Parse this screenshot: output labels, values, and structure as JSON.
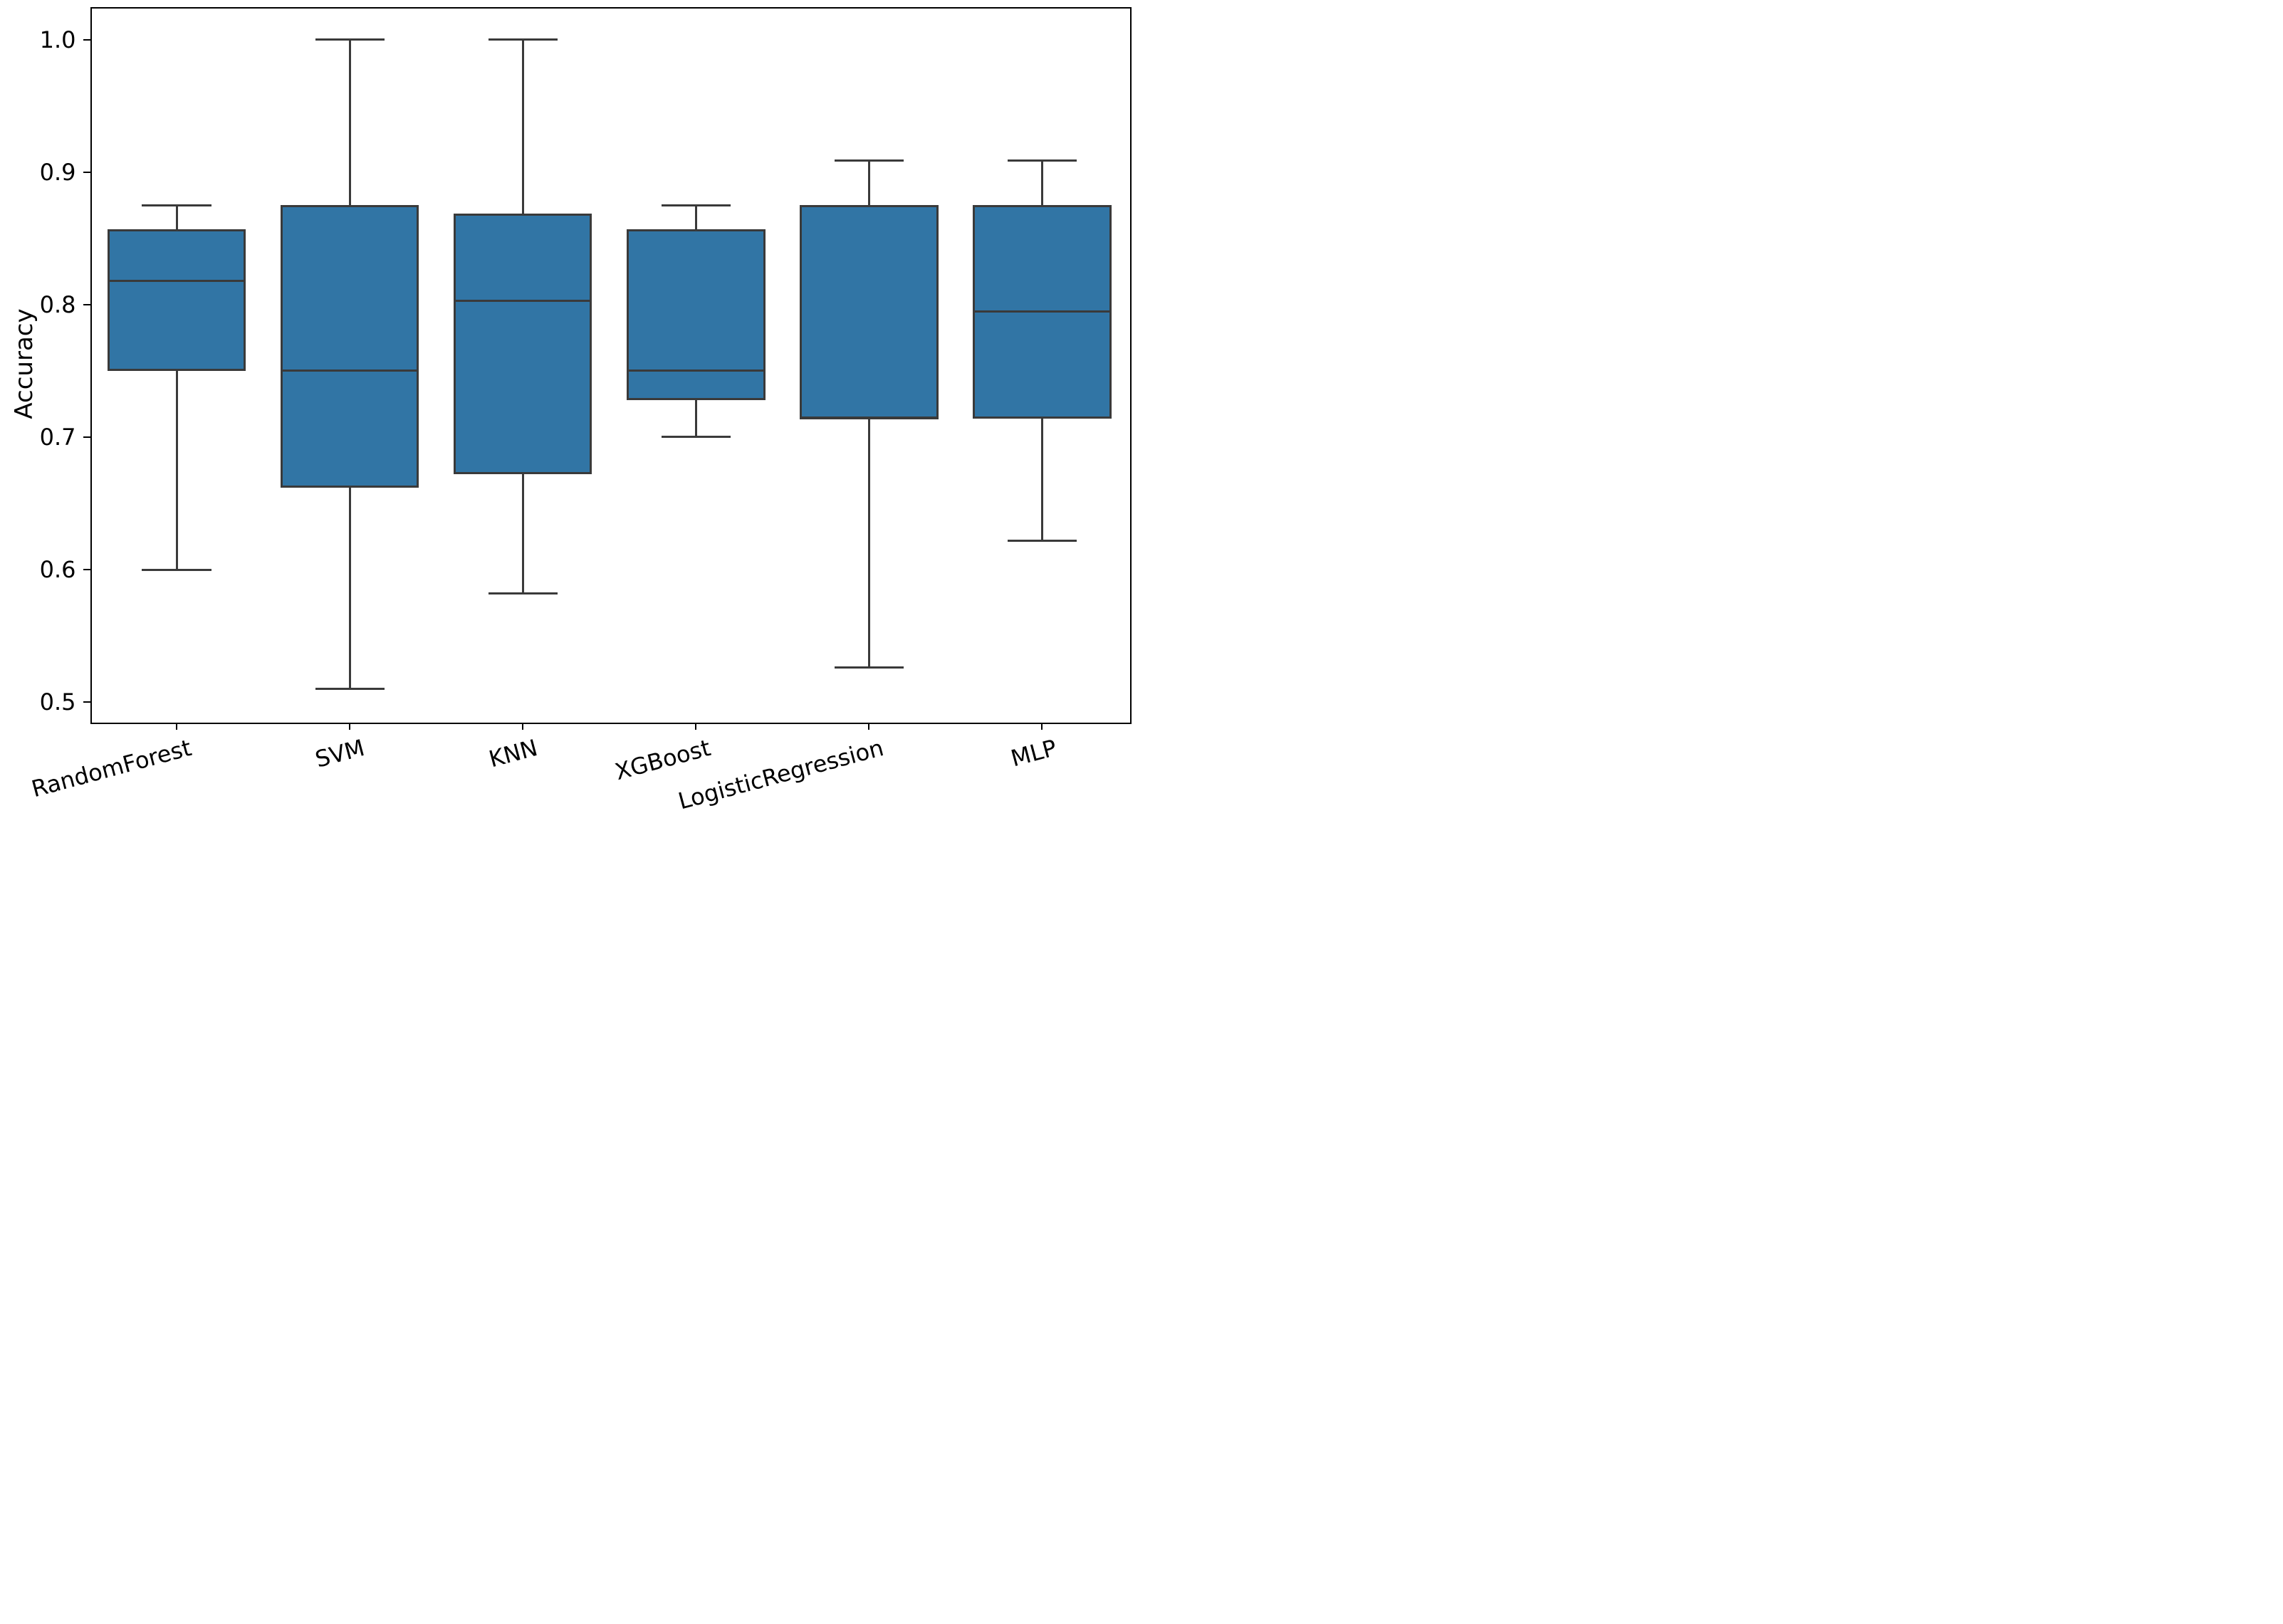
{
  "chart_data": {
    "type": "box",
    "title": "",
    "xlabel": "",
    "ylabel": "Accuracy",
    "categories": [
      "RandomForest",
      "SVM",
      "KNN",
      "XGBoost",
      "LogisticRegression",
      "MLP"
    ],
    "boxes": [
      {
        "label": "RandomForest",
        "whislo": 0.6,
        "q1": 0.75,
        "med": 0.818,
        "q3": 0.857,
        "whishi": 0.875
      },
      {
        "label": "SVM",
        "whislo": 0.51,
        "q1": 0.662,
        "med": 0.75,
        "q3": 0.875,
        "whishi": 1.0
      },
      {
        "label": "KNN",
        "whislo": 0.582,
        "q1": 0.672,
        "med": 0.803,
        "q3": 0.869,
        "whishi": 1.0
      },
      {
        "label": "XGBoost",
        "whislo": 0.7,
        "q1": 0.728,
        "med": 0.75,
        "q3": 0.857,
        "whishi": 0.875
      },
      {
        "label": "LogisticRegression",
        "whislo": 0.526,
        "q1": 0.714,
        "med": 0.714,
        "q3": 0.875,
        "whishi": 0.909
      },
      {
        "label": "MLP",
        "whislo": 0.622,
        "q1": 0.714,
        "med": 0.795,
        "q3": 0.875,
        "whishi": 0.909
      }
    ],
    "yticks": [
      {
        "v": 0.5,
        "label": "0.5"
      },
      {
        "v": 0.6,
        "label": "0.6"
      },
      {
        "v": 0.7,
        "label": "0.7"
      },
      {
        "v": 0.8,
        "label": "0.8"
      },
      {
        "v": 0.9,
        "label": "0.9"
      },
      {
        "v": 1.0,
        "label": "1.0"
      }
    ],
    "ylim": [
      0.4855,
      1.0247
    ],
    "xtick_rotation_deg": 15,
    "legend": null,
    "grid": false,
    "colors": {
      "box_fill": "#3175A5",
      "box_line": "#3A3A3A",
      "spine": "#000000",
      "text": "#000000"
    }
  }
}
